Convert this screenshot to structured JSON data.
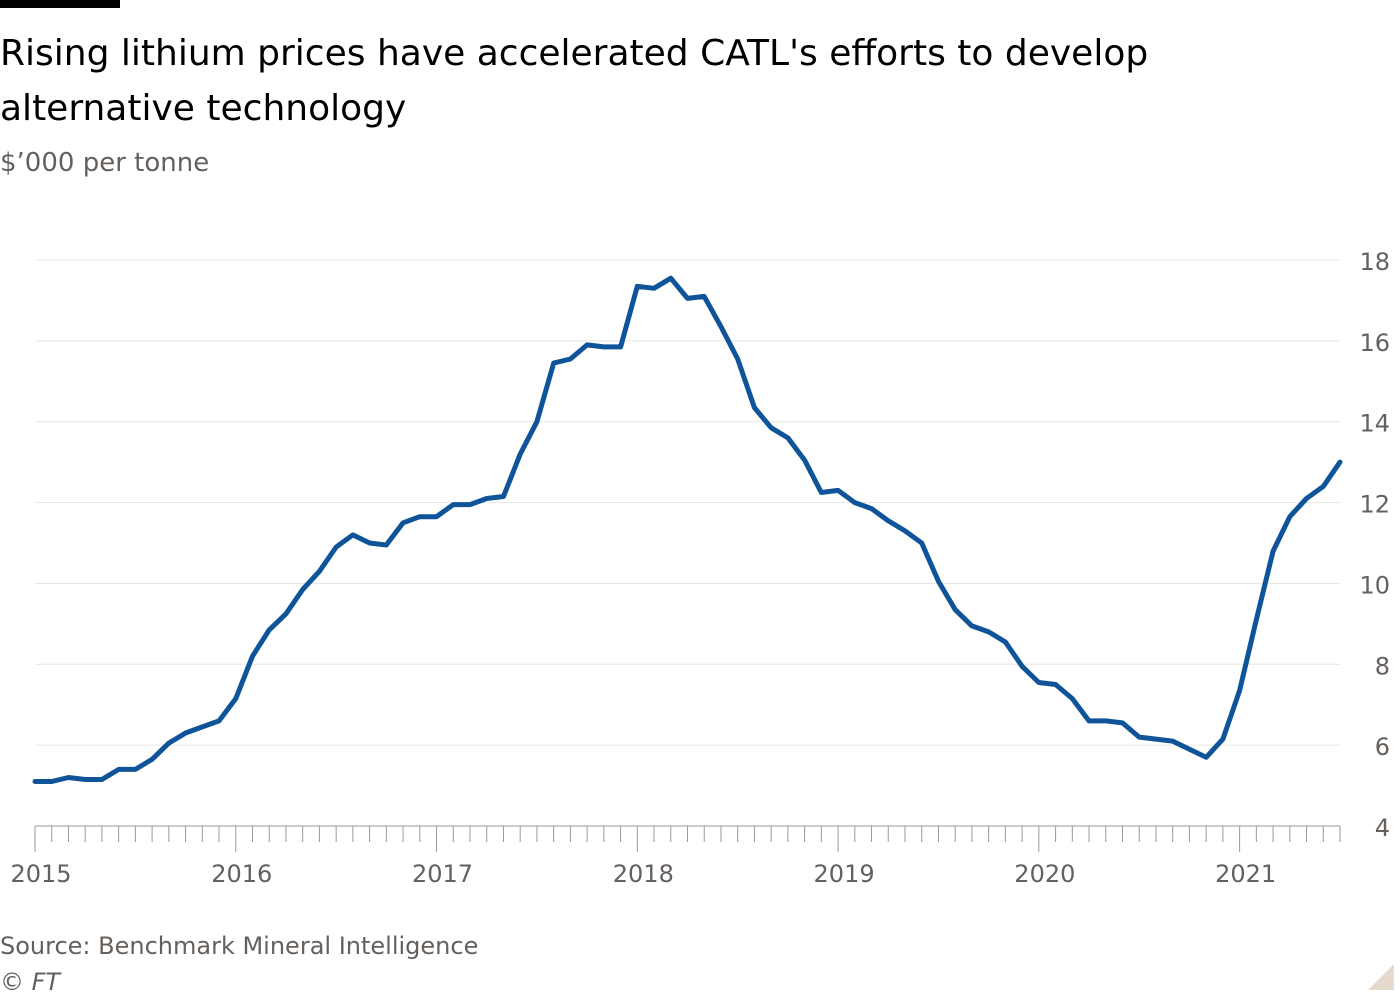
{
  "header": {
    "title": "Rising lithium prices have accelerated CATL's efforts to develop alternative technology",
    "subtitle": "$’000 per tonne"
  },
  "footer": {
    "source": "Source: Benchmark Mineral Intelligence",
    "copyright": "© FT"
  },
  "colors": {
    "line": "#0f5499",
    "grid": "#e6e6e6",
    "axis": "#999999",
    "tick_text": "#66605c"
  },
  "chart_data": {
    "type": "line",
    "title": "Rising lithium prices have accelerated CATL's efforts to develop alternative technology",
    "ylabel": "$’000 per tonne",
    "xlabel": "",
    "ylim": [
      4,
      18
    ],
    "yticks": [
      4,
      6,
      8,
      10,
      12,
      14,
      16,
      18
    ],
    "xlim": [
      "2015-01",
      "2021-07"
    ],
    "xticks": [
      "2015",
      "2016",
      "2017",
      "2018",
      "2019",
      "2020",
      "2021"
    ],
    "y_axis_position": "right",
    "grid": true,
    "series": [
      {
        "points": [
          [
            "2015-01",
            5.1
          ],
          [
            "2015-02",
            5.1
          ],
          [
            "2015-03",
            5.2
          ],
          [
            "2015-04",
            5.15
          ],
          [
            "2015-05",
            5.15
          ],
          [
            "2015-06",
            5.4
          ],
          [
            "2015-07",
            5.4
          ],
          [
            "2015-08",
            5.65
          ],
          [
            "2015-09",
            6.05
          ],
          [
            "2015-10",
            6.3
          ],
          [
            "2015-11",
            6.45
          ],
          [
            "2015-12",
            6.6
          ],
          [
            "2016-01",
            7.15
          ],
          [
            "2016-02",
            8.2
          ],
          [
            "2016-03",
            8.85
          ],
          [
            "2016-04",
            9.25
          ],
          [
            "2016-05",
            9.85
          ],
          [
            "2016-06",
            10.3
          ],
          [
            "2016-07",
            10.9
          ],
          [
            "2016-08",
            11.2
          ],
          [
            "2016-09",
            11.0
          ],
          [
            "2016-10",
            10.95
          ],
          [
            "2016-11",
            11.5
          ],
          [
            "2016-12",
            11.65
          ],
          [
            "2017-01",
            11.65
          ],
          [
            "2017-02",
            11.95
          ],
          [
            "2017-03",
            11.95
          ],
          [
            "2017-04",
            12.1
          ],
          [
            "2017-05",
            12.15
          ],
          [
            "2017-06",
            13.2
          ],
          [
            "2017-07",
            14.0
          ],
          [
            "2017-08",
            15.45
          ],
          [
            "2017-09",
            15.55
          ],
          [
            "2017-10",
            15.9
          ],
          [
            "2017-11",
            15.85
          ],
          [
            "2017-12",
            15.85
          ],
          [
            "2018-01",
            17.35
          ],
          [
            "2018-02",
            17.3
          ],
          [
            "2018-03",
            17.55
          ],
          [
            "2018-04",
            17.05
          ],
          [
            "2018-05",
            17.1
          ],
          [
            "2018-06",
            16.35
          ],
          [
            "2018-07",
            15.55
          ],
          [
            "2018-08",
            14.35
          ],
          [
            "2018-09",
            13.85
          ],
          [
            "2018-10",
            13.6
          ],
          [
            "2018-11",
            13.05
          ],
          [
            "2018-12",
            12.25
          ],
          [
            "2019-01",
            12.3
          ],
          [
            "2019-02",
            12.0
          ],
          [
            "2019-03",
            11.85
          ],
          [
            "2019-04",
            11.55
          ],
          [
            "2019-05",
            11.3
          ],
          [
            "2019-06",
            11.0
          ],
          [
            "2019-07",
            10.05
          ],
          [
            "2019-08",
            9.35
          ],
          [
            "2019-09",
            8.95
          ],
          [
            "2019-10",
            8.8
          ],
          [
            "2019-11",
            8.55
          ],
          [
            "2019-12",
            7.95
          ],
          [
            "2020-01",
            7.55
          ],
          [
            "2020-02",
            7.5
          ],
          [
            "2020-03",
            7.15
          ],
          [
            "2020-04",
            6.6
          ],
          [
            "2020-05",
            6.6
          ],
          [
            "2020-06",
            6.55
          ],
          [
            "2020-07",
            6.2
          ],
          [
            "2020-08",
            6.15
          ],
          [
            "2020-09",
            6.1
          ],
          [
            "2020-10",
            5.9
          ],
          [
            "2020-11",
            5.7
          ],
          [
            "2020-12",
            6.15
          ],
          [
            "2021-01",
            7.35
          ],
          [
            "2021-02",
            9.1
          ],
          [
            "2021-03",
            10.8
          ],
          [
            "2021-04",
            11.65
          ],
          [
            "2021-05",
            12.1
          ],
          [
            "2021-06",
            12.4
          ],
          [
            "2021-07",
            13.0
          ]
        ]
      }
    ]
  }
}
